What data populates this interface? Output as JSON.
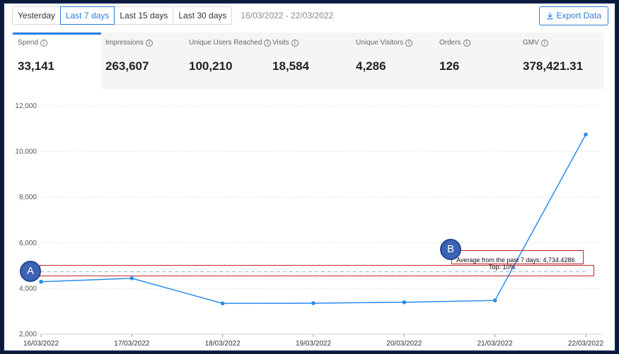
{
  "toolbar": {
    "periods": [
      "Yesterday",
      "Last 7 days",
      "Last 15 days",
      "Last 30 days"
    ],
    "active_period": "Last 7 days",
    "date_range": "16/03/2022 - 22/03/2022",
    "export_label": "Export Data"
  },
  "metrics": [
    {
      "label": "Spend",
      "value": "33,141",
      "selected": true
    },
    {
      "label": "Impressions",
      "value": "263,607",
      "selected": false
    },
    {
      "label": "Unique Users Reached",
      "value": "100,210",
      "selected": false
    },
    {
      "label": "Visits",
      "value": "18,584",
      "selected": false
    },
    {
      "label": "Unique Visitors",
      "value": "4,286",
      "selected": false
    },
    {
      "label": "Orders",
      "value": "126",
      "selected": false
    },
    {
      "label": "GMV",
      "value": "378,421.31",
      "selected": false
    }
  ],
  "annotations": {
    "circle_a": "A",
    "circle_b": "B",
    "average_label": "Average from the past 7 days: 4,734.4286",
    "top_label": "Top: 10%"
  },
  "colors": {
    "accent": "#2a7de1",
    "line": "#2a8cf0",
    "highlight_box": "#c0262d",
    "callout": "#3b63b6"
  },
  "chart_data": {
    "type": "line",
    "x": [
      "16/03/2022",
      "17/03/2022",
      "18/03/2022",
      "19/03/2022",
      "20/03/2022",
      "21/03/2022",
      "22/03/2022"
    ],
    "series": [
      {
        "values": [
          4300,
          4450,
          3350,
          3360,
          3400,
          3480,
          10750
        ]
      }
    ],
    "average": 4734.4286,
    "yticks": [
      "2,000",
      "4,000",
      "6,000",
      "8,000",
      "10,000",
      "12,000"
    ],
    "ylim": [
      2000,
      12000
    ],
    "grid": true
  }
}
